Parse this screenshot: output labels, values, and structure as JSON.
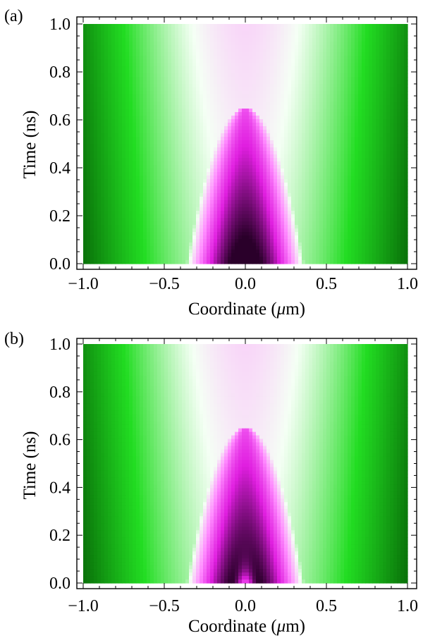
{
  "chart_data": [
    {
      "panel_label": "(a)",
      "type": "heatmap",
      "xlabel_prefix": "Coordinate (",
      "xlabel_unit_italic": "μ",
      "xlabel_suffix": "m)",
      "ylabel": "Time (ns)",
      "xlim": [
        -1.0,
        1.0
      ],
      "ylim": [
        0.0,
        1.0
      ],
      "xticks": [
        "−1.0",
        "−0.5",
        "0.0",
        "0.5",
        "1.0"
      ],
      "xtick_values": [
        -1.0,
        -0.5,
        0.0,
        0.5,
        1.0
      ],
      "yticks": [
        "0.0",
        "0.2",
        "0.4",
        "0.6",
        "0.8",
        "1.0"
      ],
      "ytick_values": [
        0.0,
        0.2,
        0.4,
        0.6,
        0.8,
        1.0
      ],
      "colormap": [
        "#013a01",
        "#0c7d0c",
        "#22dd22",
        "#f5fff5",
        "#ff8cff",
        "#e01ee0",
        "#2a002a"
      ],
      "profile": "single_peak",
      "description_values": {
        "peak_x": 0.0,
        "peak_t": 0.0,
        "hot_region_half_width": 0.33
      }
    },
    {
      "panel_label": "(b)",
      "type": "heatmap",
      "xlabel_prefix": "Coordinate (",
      "xlabel_unit_italic": "μ",
      "xlabel_suffix": "m)",
      "ylabel": "Time (ns)",
      "xlim": [
        -1.0,
        1.0
      ],
      "ylim": [
        0.0,
        1.0
      ],
      "xticks": [
        "−1.0",
        "−0.5",
        "0.0",
        "0.5",
        "1.0"
      ],
      "xtick_values": [
        -1.0,
        -0.5,
        0.0,
        0.5,
        1.0
      ],
      "yticks": [
        "0.0",
        "0.2",
        "0.4",
        "0.6",
        "0.8",
        "1.0"
      ],
      "ytick_values": [
        0.0,
        0.2,
        0.4,
        0.6,
        0.8,
        1.0
      ],
      "colormap": [
        "#013a01",
        "#0c7d0c",
        "#22dd22",
        "#f5fff5",
        "#ff8cff",
        "#e01ee0",
        "#2a002a"
      ],
      "profile": "double_peak",
      "description_values": {
        "peak_x": [
          -0.1,
          0.1
        ],
        "peak_t": 0.0,
        "hot_region_half_width": 0.33
      }
    }
  ]
}
